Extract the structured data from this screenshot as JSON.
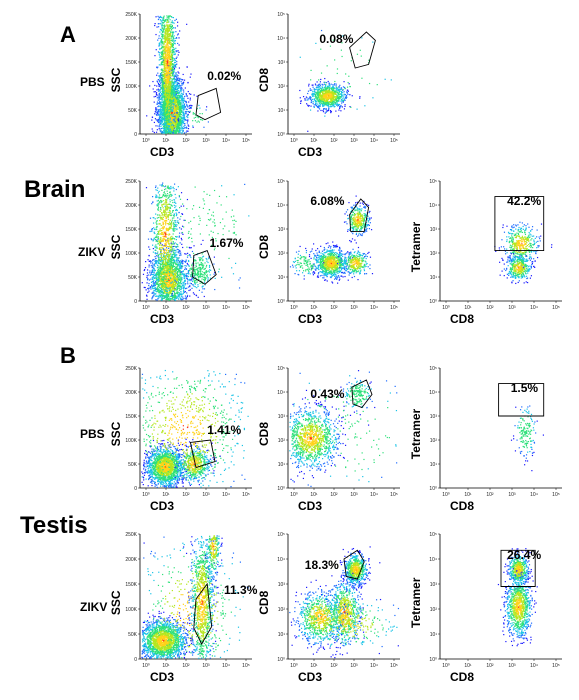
{
  "figure": {
    "panels": [
      {
        "letter": "A",
        "tissue": "Brain"
      },
      {
        "letter": "B",
        "tissue": "Testis"
      }
    ],
    "conditions": [
      "PBS",
      "ZIKV"
    ],
    "plots": [
      {
        "id": "A-PBS-1",
        "x_label": "CD3",
        "y_label": "SSC",
        "gate_pct": "0.02%"
      },
      {
        "id": "A-PBS-2",
        "x_label": "CD3",
        "y_label": "CD8",
        "gate_pct": "0.08%"
      },
      {
        "id": "A-ZIKV-1",
        "x_label": "CD3",
        "y_label": "SSC",
        "gate_pct": "1.67%"
      },
      {
        "id": "A-ZIKV-2",
        "x_label": "CD3",
        "y_label": "CD8",
        "gate_pct": "6.08%"
      },
      {
        "id": "A-ZIKV-3",
        "x_label": "CD8",
        "y_label": "Tetramer",
        "gate_pct": "42.2%"
      },
      {
        "id": "B-PBS-1",
        "x_label": "CD3",
        "y_label": "SSC",
        "gate_pct": "1.41%"
      },
      {
        "id": "B-PBS-2",
        "x_label": "CD3",
        "y_label": "CD8",
        "gate_pct": "0.43%"
      },
      {
        "id": "B-PBS-3",
        "x_label": "CD8",
        "y_label": "Tetramer",
        "gate_pct": "1.5%"
      },
      {
        "id": "B-ZIKV-1",
        "x_label": "CD3",
        "y_label": "SSC",
        "gate_pct": "11.3%"
      },
      {
        "id": "B-ZIKV-2",
        "x_label": "CD3",
        "y_label": "CD8",
        "gate_pct": "18.3%"
      },
      {
        "id": "B-ZIKV-3",
        "x_label": "CD8",
        "y_label": "Tetramer",
        "gate_pct": "26.4%"
      }
    ],
    "ssc_ticks": [
      "250K",
      "200K",
      "150K",
      "100K",
      "50K",
      "0"
    ],
    "log_ticks": [
      "10⁰",
      "10¹",
      "10²",
      "10³",
      "10⁴",
      "10⁵"
    ]
  }
}
